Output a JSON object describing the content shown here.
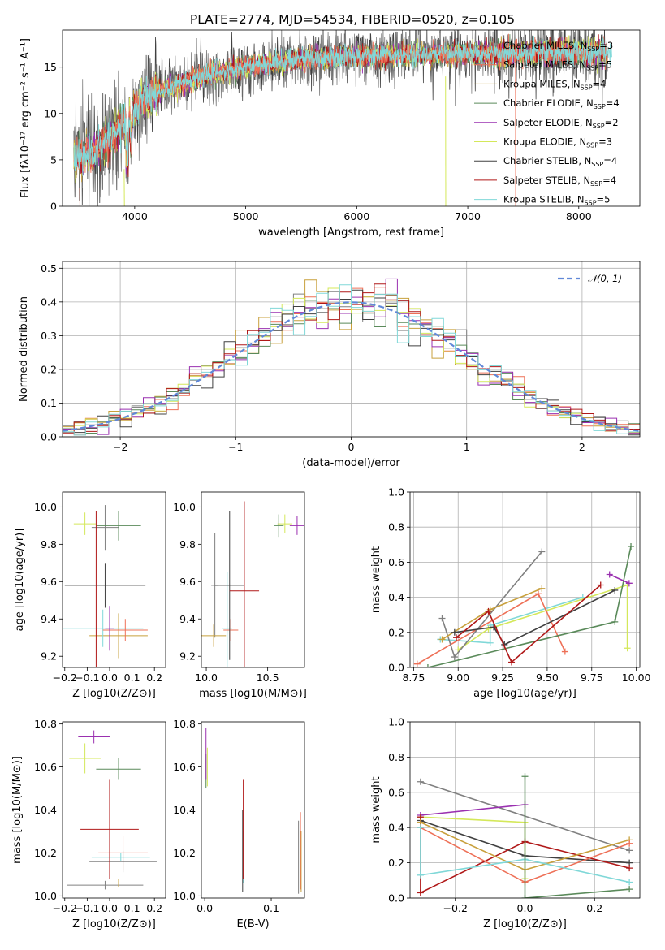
{
  "figure": {
    "title": "PLATE=2774, MJD=54534, FIBERID=0520, z=0.105"
  },
  "models": [
    {
      "name": "Chabrier MILES, N",
      "sub": "SSP",
      "eq": "=3",
      "color": "#808080"
    },
    {
      "name": "Salpeter MILES, N",
      "sub": "SSP",
      "eq": "=5",
      "color": "#ee7057"
    },
    {
      "name": "Kroupa MILES, N",
      "sub": "SSP",
      "eq": "=4",
      "color": "#c8a03c"
    },
    {
      "name": "Chabrier ELODIE, N",
      "sub": "SSP",
      "eq": "=4",
      "color": "#5a8a5a"
    },
    {
      "name": "Salpeter ELODIE, N",
      "sub": "SSP",
      "eq": "=2",
      "color": "#9a30b0"
    },
    {
      "name": "Kroupa ELODIE, N",
      "sub": "SSP",
      "eq": "=3",
      "color": "#d4e85a"
    },
    {
      "name": "Chabrier STELIB, N",
      "sub": "SSP",
      "eq": "=4",
      "color": "#404040"
    },
    {
      "name": "Salpeter STELIB, N",
      "sub": "SSP",
      "eq": "=4",
      "color": "#b01818"
    },
    {
      "name": "Kroupa STELIB, N",
      "sub": "SSP",
      "eq": "=5",
      "color": "#80d8d8"
    }
  ],
  "chart_data": [
    {
      "id": "spectrum",
      "type": "line",
      "title": "PLATE=2774, MJD=54534, FIBERID=0520, z=0.105",
      "xlabel": "wavelength [Angstrom, rest frame]",
      "ylabel": "Flux [fλ10⁻¹⁷ erg cm⁻² s⁻¹ A⁻¹]",
      "xlim": [
        3350,
        8550
      ],
      "ylim": [
        0,
        19
      ],
      "xticks": [
        4000,
        5000,
        6000,
        7000,
        8000
      ],
      "yticks": [
        0,
        5,
        10,
        15
      ],
      "continuum": {
        "x": [
          3450,
          3600,
          3800,
          3950,
          4050,
          4300,
          4600,
          5000,
          5500,
          6000,
          6500,
          7000,
          7500,
          8000,
          8300
        ],
        "y": [
          5.2,
          5.6,
          7.5,
          9.5,
          11.2,
          12.8,
          14.0,
          15.0,
          15.8,
          16.2,
          16.3,
          16.4,
          16.5,
          16.6,
          16.6
        ]
      },
      "legend_loc": "upper right"
    },
    {
      "id": "residuals",
      "type": "histogram",
      "xlabel": "(data-model)/error",
      "ylabel": "Normed distribution",
      "xlim": [
        -2.5,
        2.5
      ],
      "ylim": [
        0,
        0.52
      ],
      "xticks": [
        -2,
        -1,
        0,
        1,
        2
      ],
      "yticks": [
        0.0,
        0.1,
        0.2,
        0.3,
        0.4,
        0.5
      ],
      "grid": true,
      "bin_width": 0.1,
      "reference_curve": {
        "label": "N(0,1)",
        "color": "#6088d8"
      },
      "legend_loc": "upper right"
    },
    {
      "id": "age-vs-Z",
      "type": "errorbar",
      "xlabel": "Z [log10(Z/Z⊙)]",
      "ylabel": "age [log10(age/yr)]",
      "xlim": [
        -0.21,
        0.25
      ],
      "ylim": [
        9.14,
        10.08
      ],
      "xticks": [
        -0.2,
        -0.1,
        0.0,
        0.1,
        0.2
      ],
      "yticks": [
        9.2,
        9.4,
        9.6,
        9.8,
        10.0
      ],
      "points": [
        {
          "x": -0.02,
          "y": 9.89,
          "xerr": 0.06,
          "yerr": 0.12,
          "c": 0
        },
        {
          "x": 0.04,
          "y": 9.31,
          "xerr": 0.13,
          "yerr": 0.12,
          "c": 2
        },
        {
          "x": -0.03,
          "y": 9.35,
          "xerr": 0.18,
          "yerr": 0.1,
          "c": 8
        },
        {
          "x": 0.07,
          "y": 9.34,
          "xerr": 0.1,
          "yerr": 0.06,
          "c": 1
        },
        {
          "x": -0.11,
          "y": 9.91,
          "xerr": 0.05,
          "yerr": 0.06,
          "c": 5
        },
        {
          "x": 0.04,
          "y": 9.9,
          "xerr": 0.1,
          "yerr": 0.08,
          "c": 3
        },
        {
          "x": -0.02,
          "y": 9.58,
          "xerr": 0.18,
          "yerr": 0.12,
          "c": 6
        },
        {
          "x": -0.06,
          "y": 9.56,
          "xerr": 0.12,
          "yerr": 0.42,
          "c": 7
        },
        {
          "x": 0.0,
          "y": 9.35,
          "xerr": 0.02,
          "yerr": 0.12,
          "c": 4
        }
      ]
    },
    {
      "id": "age-vs-mass",
      "type": "errorbar",
      "xlabel": "mass [log10(M/M⊙)]",
      "ylabel": "",
      "xlim": [
        9.96,
        10.8
      ],
      "ylim": [
        9.14,
        10.08
      ],
      "xticks": [
        10.0,
        10.5
      ],
      "yticks": [
        9.2,
        9.4,
        9.6,
        9.8,
        10.0
      ],
      "points": [
        {
          "x": 10.07,
          "y": 9.58,
          "xerr": 0.03,
          "yerr": 0.28,
          "c": 0
        },
        {
          "x": 10.06,
          "y": 9.31,
          "xerr": 0.1,
          "yerr": 0.06,
          "c": 2
        },
        {
          "x": 10.17,
          "y": 9.35,
          "xerr": 0.04,
          "yerr": 0.3,
          "c": 8
        },
        {
          "x": 10.2,
          "y": 9.34,
          "xerr": 0.06,
          "yerr": 0.06,
          "c": 1
        },
        {
          "x": 10.64,
          "y": 9.91,
          "xerr": 0.06,
          "yerr": 0.05,
          "c": 5
        },
        {
          "x": 10.59,
          "y": 9.9,
          "xerr": 0.04,
          "yerr": 0.06,
          "c": 3
        },
        {
          "x": 10.19,
          "y": 9.58,
          "xerr": 0.12,
          "yerr": 0.4,
          "c": 6
        },
        {
          "x": 10.31,
          "y": 9.55,
          "xerr": 0.12,
          "yerr": 0.48,
          "c": 7
        },
        {
          "x": 10.74,
          "y": 9.9,
          "xerr": 0.06,
          "yerr": 0.05,
          "c": 4
        }
      ]
    },
    {
      "id": "massweight-vs-age",
      "type": "line",
      "xlabel": "age [log10(age/yr)]",
      "ylabel": "mass weight",
      "xlim": [
        8.73,
        10.02
      ],
      "ylim": [
        0,
        1
      ],
      "xticks": [
        8.75,
        9.0,
        9.25,
        9.5,
        9.75,
        10.0
      ],
      "yticks": [
        0.0,
        0.2,
        0.4,
        0.6,
        0.8,
        1.0
      ],
      "grid": true,
      "series": [
        {
          "c": 8,
          "x": [
            8.9,
            9.18,
            9.18,
            9.7
          ],
          "y": [
            0.16,
            0.14,
            0.24,
            0.4
          ]
        },
        {
          "c": 5,
          "x": [
            9.0,
            9.17,
            9.95,
            9.95
          ],
          "y": [
            0.1,
            0.22,
            0.47,
            0.11
          ]
        },
        {
          "c": 1,
          "x": [
            8.77,
            9.45,
            9.6
          ],
          "y": [
            0.02,
            0.42,
            0.09
          ]
        },
        {
          "c": 0,
          "x": [
            8.91,
            8.98,
            9.47
          ],
          "y": [
            0.28,
            0.06,
            0.66
          ]
        },
        {
          "c": 2,
          "x": [
            8.91,
            9.18,
            9.47
          ],
          "y": [
            0.16,
            0.33,
            0.45
          ]
        },
        {
          "c": 3,
          "x": [
            8.83,
            9.88,
            9.97
          ],
          "y": [
            0.0,
            0.26,
            0.69
          ]
        },
        {
          "c": 4,
          "x": [
            9.85,
            9.96
          ],
          "y": [
            0.53,
            0.48
          ]
        },
        {
          "c": 6,
          "x": [
            8.98,
            9.2,
            9.26,
            9.88
          ],
          "y": [
            0.2,
            0.23,
            0.13,
            0.44
          ]
        },
        {
          "c": 7,
          "x": [
            8.99,
            9.17,
            9.3,
            9.8
          ],
          "y": [
            0.17,
            0.32,
            0.03,
            0.47
          ]
        }
      ]
    },
    {
      "id": "mass-vs-Z",
      "type": "errorbar",
      "xlabel": "Z [log10(Z/Z⊙)]",
      "ylabel": "mass [log10(M/M⊙)]",
      "xlim": [
        -0.21,
        0.25
      ],
      "ylim": [
        9.99,
        10.81
      ],
      "xticks": [
        -0.2,
        -0.1,
        0.0,
        0.1,
        0.2
      ],
      "yticks": [
        10.0,
        10.2,
        10.4,
        10.6,
        10.8
      ],
      "points": [
        {
          "x": -0.02,
          "y": 10.05,
          "xerr": 0.17,
          "yerr": 0.02,
          "c": 0
        },
        {
          "x": 0.04,
          "y": 10.06,
          "xerr": 0.13,
          "yerr": 0.02,
          "c": 2
        },
        {
          "x": 0.05,
          "y": 10.18,
          "xerr": 0.13,
          "yerr": 0.02,
          "c": 8
        },
        {
          "x": 0.06,
          "y": 10.2,
          "xerr": 0.11,
          "yerr": 0.08,
          "c": 1
        },
        {
          "x": -0.11,
          "y": 10.64,
          "xerr": 0.07,
          "yerr": 0.07,
          "c": 5
        },
        {
          "x": 0.04,
          "y": 10.59,
          "xerr": 0.1,
          "yerr": 0.05,
          "c": 3
        },
        {
          "x": 0.06,
          "y": 10.16,
          "xerr": 0.15,
          "yerr": 0.05,
          "c": 6
        },
        {
          "x": 0.0,
          "y": 10.31,
          "xerr": 0.13,
          "yerr": 0.23,
          "c": 7
        },
        {
          "x": -0.07,
          "y": 10.74,
          "xerr": 0.07,
          "yerr": 0.03,
          "c": 4
        }
      ]
    },
    {
      "id": "mass-vs-ebv",
      "type": "errorbar",
      "xlabel": "E(B-V)",
      "ylabel": "",
      "xlim": [
        -0.005,
        0.15
      ],
      "ylim": [
        9.99,
        10.81
      ],
      "xticks": [
        0.0,
        0.1
      ],
      "yticks": [
        10.0,
        10.2,
        10.4,
        10.6,
        10.8
      ],
      "points": [
        {
          "x": 0.058,
          "y": 10.18,
          "xerr": 0,
          "yerr": 0.12,
          "c": 8
        },
        {
          "x": 0.141,
          "y": 10.18,
          "xerr": 0,
          "yerr": 0.17,
          "c": 0
        },
        {
          "x": 0.145,
          "y": 10.16,
          "xerr": 0,
          "yerr": 0.14,
          "c": 2
        },
        {
          "x": 0.144,
          "y": 10.21,
          "xerr": 0,
          "yerr": 0.18,
          "c": 1
        },
        {
          "x": 0.004,
          "y": 10.6,
          "xerr": 0,
          "yerr": 0.09,
          "c": 5
        },
        {
          "x": 0.002,
          "y": 10.58,
          "xerr": 0,
          "yerr": 0.08,
          "c": 3
        },
        {
          "x": 0.057,
          "y": 10.21,
          "xerr": 0,
          "yerr": 0.19,
          "c": 6
        },
        {
          "x": 0.058,
          "y": 10.31,
          "xerr": 0,
          "yerr": 0.23,
          "c": 7
        },
        {
          "x": 0.002,
          "y": 10.66,
          "xerr": 0,
          "yerr": 0.12,
          "c": 4
        }
      ]
    },
    {
      "id": "massweight-vs-Z",
      "type": "line",
      "xlabel": "Z [log10(Z/Z⊙)]",
      "ylabel": "mass weight",
      "xlim": [
        -0.33,
        0.33
      ],
      "ylim": [
        0,
        1
      ],
      "xticks": [
        -0.2,
        0.0,
        0.2
      ],
      "yticks": [
        0.0,
        0.2,
        0.4,
        0.6,
        0.8,
        1.0
      ],
      "grid": true,
      "series": [
        {
          "c": 0,
          "x": [
            -0.3,
            0.3
          ],
          "y": [
            0.66,
            0.27
          ]
        },
        {
          "c": 4,
          "x": [
            -0.3,
            0.0
          ],
          "y": [
            0.47,
            0.53
          ]
        },
        {
          "c": 5,
          "x": [
            -0.3,
            0.0,
            0.0
          ],
          "y": [
            0.46,
            0.43,
            0.11
          ]
        },
        {
          "c": 6,
          "x": [
            -0.3,
            0.0,
            0.3
          ],
          "y": [
            0.44,
            0.24,
            0.2
          ]
        },
        {
          "c": 7,
          "x": [
            -0.3,
            -0.3,
            0.0,
            0.3
          ],
          "y": [
            0.46,
            0.03,
            0.32,
            0.17
          ]
        },
        {
          "c": 2,
          "x": [
            -0.3,
            0.0,
            0.3
          ],
          "y": [
            0.43,
            0.16,
            0.33
          ]
        },
        {
          "c": 1,
          "x": [
            -0.3,
            0.0,
            0.3
          ],
          "y": [
            0.4,
            0.09,
            0.31
          ]
        },
        {
          "c": 8,
          "x": [
            -0.3,
            -0.3,
            0.0,
            0.3
          ],
          "y": [
            0.4,
            0.13,
            0.22,
            0.09
          ]
        },
        {
          "c": 3,
          "x": [
            0.0,
            0.0,
            0.3
          ],
          "y": [
            0.69,
            0.0,
            0.05
          ]
        }
      ]
    }
  ]
}
